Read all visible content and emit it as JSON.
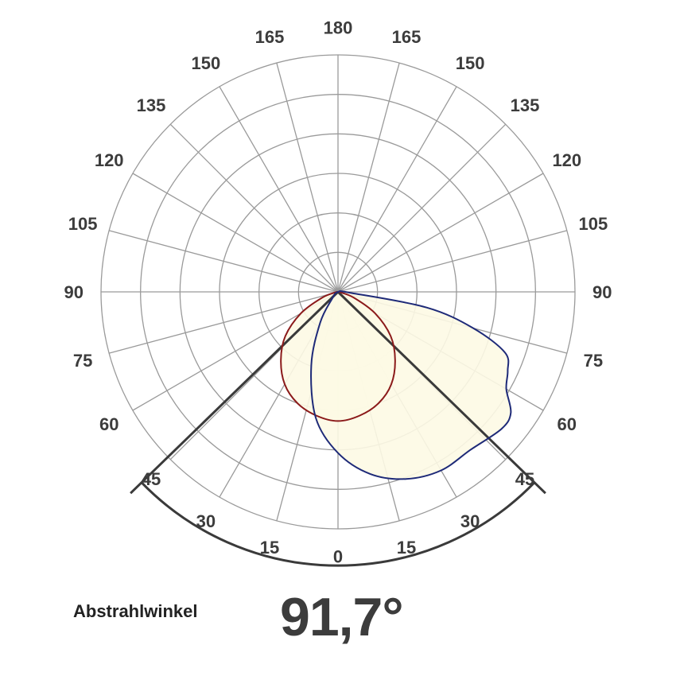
{
  "chart_data": {
    "type": "polar",
    "angle_ticks_left": [
      "0",
      "15",
      "30",
      "45",
      "60",
      "75",
      "90",
      "105",
      "120",
      "135",
      "150",
      "165",
      "180"
    ],
    "angle_ticks_right": [
      "15",
      "30",
      "45",
      "60",
      "75",
      "90",
      "105",
      "120",
      "135",
      "150",
      "165"
    ],
    "angle_step_deg": 15,
    "radial_rings": 6,
    "grid": true,
    "beam_angle_deg": 91.7,
    "series": [
      {
        "color": "#8b1a1a",
        "curve": "symmetric",
        "points": [
          {
            "angle": 0,
            "r": 0.545
          },
          {
            "angle": 10,
            "r": 0.53
          },
          {
            "angle": 20,
            "r": 0.5
          },
          {
            "angle": 30,
            "r": 0.45
          },
          {
            "angle": 40,
            "r": 0.375
          },
          {
            "angle": 50,
            "r": 0.29
          },
          {
            "angle": 60,
            "r": 0.18
          },
          {
            "angle": 70,
            "r": 0.07
          },
          {
            "angle": 80,
            "r": 0.01
          }
        ]
      },
      {
        "color": "#1e2a78",
        "curve": "asymmetric",
        "points": [
          {
            "angle": -40,
            "r": 0.04
          },
          {
            "angle": -30,
            "r": 0.15
          },
          {
            "angle": -20,
            "r": 0.33
          },
          {
            "angle": -10,
            "r": 0.54
          },
          {
            "angle": 0,
            "r": 0.68
          },
          {
            "angle": 10,
            "r": 0.78
          },
          {
            "angle": 20,
            "r": 0.84
          },
          {
            "angle": 30,
            "r": 0.87
          },
          {
            "angle": 40,
            "r": 0.87
          },
          {
            "angle": 50,
            "r": 0.9
          },
          {
            "angle": 55,
            "r": 0.89
          },
          {
            "angle": 60,
            "r": 0.82
          },
          {
            "angle": 65,
            "r": 0.79
          },
          {
            "angle": 70,
            "r": 0.75
          },
          {
            "angle": 75,
            "r": 0.59
          },
          {
            "angle": 80,
            "r": 0.38
          },
          {
            "angle": 85,
            "r": 0.06
          }
        ]
      }
    ],
    "fill_color": "#fdf9e4"
  },
  "footer": {
    "label": "Abstrahlwinkel",
    "value": "91,7°"
  }
}
